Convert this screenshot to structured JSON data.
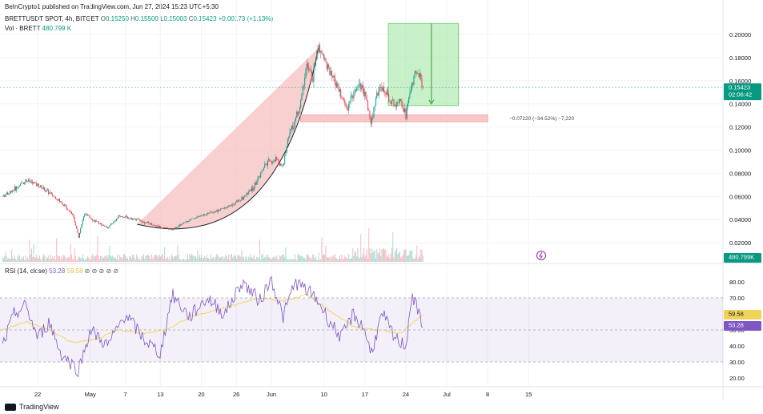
{
  "header": {
    "published": "BeInCrypto1 published on TradingView.com, Jun 27, 2024 15:23 UTC+5:30",
    "symbol": "BRETTUSDT SPOT, 4h, BITGET",
    "o_label": "O",
    "o_value": "0.15250",
    "h_label": "H",
    "h_value": "0.15500",
    "l_label": "L",
    "l_value": "0.15003",
    "c_label": "C",
    "c_value": "0.15423",
    "change": "+0.00173 (+1.13%)",
    "vol_label": "Vol · BRETT",
    "vol_value": "480.799 K",
    "rsi_label": "RSI (14, close)",
    "rsi_value": "53.28",
    "rsi_ma_value": "59.58",
    "eye_icons": "⊘ ⊘ ⊘ ⊘ ⊘"
  },
  "badges": {
    "price": "0.15423",
    "countdown": "02:06:42",
    "volume": "480.799K",
    "rsi": "53.28",
    "rsi_ma": "59.58"
  },
  "measure_label": "−0.07220 (−34.52%) −7,220",
  "footer": {
    "brand": "TradingView"
  },
  "colors": {
    "up": "#089981",
    "down": "#f23645",
    "rsi_line": "#7e57c2",
    "rsi_ma": "#f0d35a",
    "cup_fill": "#f7c0c0",
    "box_green": "#9ce59c",
    "box_red": "#f5b5b5"
  },
  "chart_data": [
    {
      "type": "candlestick",
      "title": "BRETTUSDT SPOT, 4h, BITGET",
      "x_ticks": [
        "22",
        "May",
        "7",
        "13",
        "20",
        "26",
        "Jun",
        "10",
        "17",
        "24",
        "Jul",
        "8",
        "15"
      ],
      "y_ticks": [
        "0.20000",
        "0.18000",
        "0.16000",
        "0.14000",
        "0.12000",
        "0.10000",
        "0.08000",
        "0.06000",
        "0.04000",
        "0.02000"
      ],
      "ylim": [
        0.0,
        0.207
      ],
      "grid": true,
      "close_path": [
        {
          "x": "Apr 16",
          "y": 0.06
        },
        {
          "x": "Apr 18",
          "y": 0.066
        },
        {
          "x": "Apr 20",
          "y": 0.074
        },
        {
          "x": "Apr 22",
          "y": 0.07
        },
        {
          "x": "Apr 24",
          "y": 0.063
        },
        {
          "x": "Apr 26",
          "y": 0.055
        },
        {
          "x": "Apr 28",
          "y": 0.045
        },
        {
          "x": "Apr 29",
          "y": 0.025
        },
        {
          "x": "Apr 30",
          "y": 0.045
        },
        {
          "x": "May 2",
          "y": 0.038
        },
        {
          "x": "May 4",
          "y": 0.033
        },
        {
          "x": "May 6",
          "y": 0.043
        },
        {
          "x": "May 9",
          "y": 0.04
        },
        {
          "x": "May 12",
          "y": 0.035
        },
        {
          "x": "May 15",
          "y": 0.031
        },
        {
          "x": "May 18",
          "y": 0.04
        },
        {
          "x": "May 21",
          "y": 0.045
        },
        {
          "x": "May 24",
          "y": 0.05
        },
        {
          "x": "May 27",
          "y": 0.058
        },
        {
          "x": "May 29",
          "y": 0.068
        },
        {
          "x": "May 31",
          "y": 0.088
        },
        {
          "x": "Jun 2",
          "y": 0.092
        },
        {
          "x": "Jun 3",
          "y": 0.085
        },
        {
          "x": "Jun 4",
          "y": 0.115
        },
        {
          "x": "Jun 5",
          "y": 0.125
        },
        {
          "x": "Jun 6",
          "y": 0.14
        },
        {
          "x": "Jun 7",
          "y": 0.175
        },
        {
          "x": "Jun 8",
          "y": 0.16
        },
        {
          "x": "Jun 9",
          "y": 0.19
        },
        {
          "x": "Jun 10",
          "y": 0.18
        },
        {
          "x": "Jun 11",
          "y": 0.165
        },
        {
          "x": "Jun 12",
          "y": 0.158
        },
        {
          "x": "Jun 13",
          "y": 0.145
        },
        {
          "x": "Jun 14",
          "y": 0.135
        },
        {
          "x": "Jun 15",
          "y": 0.15
        },
        {
          "x": "Jun 16",
          "y": 0.158
        },
        {
          "x": "Jun 17",
          "y": 0.15
        },
        {
          "x": "Jun 18",
          "y": 0.123
        },
        {
          "x": "Jun 19",
          "y": 0.148
        },
        {
          "x": "Jun 20",
          "y": 0.155
        },
        {
          "x": "Jun 21",
          "y": 0.145
        },
        {
          "x": "Jun 22",
          "y": 0.14
        },
        {
          "x": "Jun 23",
          "y": 0.146
        },
        {
          "x": "Jun 24",
          "y": 0.13
        },
        {
          "x": "Jun 25",
          "y": 0.158
        },
        {
          "x": "Jun 26",
          "y": 0.168
        },
        {
          "x": "Jun 27",
          "y": 0.154
        }
      ],
      "current_price": 0.15423,
      "annotations": {
        "projection_box": {
          "x_start": "Jun 21",
          "x_end": "Jul 3",
          "y_top": 0.2095,
          "y_bottom": 0.1385,
          "color": "green"
        },
        "measure_box": {
          "x_start": "Jun 6",
          "x_end": "Jul 8",
          "y_top": 0.1305,
          "y_bottom": 0.1245,
          "color": "red"
        },
        "cup_pattern": {
          "x_start": "May 9",
          "x_end": "Jun 9",
          "bottom_y": 0.029
        }
      }
    },
    {
      "type": "bar",
      "title": "Vol · BRETT",
      "current_value": "480.799 K"
    },
    {
      "type": "line",
      "title": "RSI (14, close)",
      "y_ticks": [
        "80.00",
        "70.00",
        "60.00",
        "50.00",
        "40.00",
        "30.00",
        "20.00"
      ],
      "ylim": [
        17.5,
        87.5
      ],
      "bands": {
        "upper": 70,
        "middle": 50,
        "lower": 30
      },
      "series": [
        {
          "values": [
            {
              "x": "Apr 16",
              "y": 40
            },
            {
              "x": "Apr 18",
              "y": 60
            },
            {
              "x": "Apr 20",
              "y": 65
            },
            {
              "x": "Apr 22",
              "y": 45
            },
            {
              "x": "Apr 24",
              "y": 55
            },
            {
              "x": "Apr 26",
              "y": 35
            },
            {
              "x": "Apr 29",
              "y": 25
            },
            {
              "x": "May 1",
              "y": 50
            },
            {
              "x": "May 4",
              "y": 40
            },
            {
              "x": "May 7",
              "y": 60
            },
            {
              "x": "May 10",
              "y": 45
            },
            {
              "x": "May 13",
              "y": 35
            },
            {
              "x": "May 15",
              "y": 72
            },
            {
              "x": "May 18",
              "y": 58
            },
            {
              "x": "May 21",
              "y": 70
            },
            {
              "x": "May 24",
              "y": 60
            },
            {
              "x": "May 27",
              "y": 80
            },
            {
              "x": "May 30",
              "y": 68
            },
            {
              "x": "Jun 1",
              "y": 82
            },
            {
              "x": "Jun 3",
              "y": 58
            },
            {
              "x": "Jun 5",
              "y": 80
            },
            {
              "x": "Jun 7",
              "y": 75
            },
            {
              "x": "Jun 9",
              "y": 68
            },
            {
              "x": "Jun 11",
              "y": 55
            },
            {
              "x": "Jun 13",
              "y": 45
            },
            {
              "x": "Jun 15",
              "y": 60
            },
            {
              "x": "Jun 17",
              "y": 50
            },
            {
              "x": "Jun 18",
              "y": 35
            },
            {
              "x": "Jun 20",
              "y": 60
            },
            {
              "x": "Jun 22",
              "y": 45
            },
            {
              "x": "Jun 24",
              "y": 40
            },
            {
              "x": "Jun 25",
              "y": 72
            },
            {
              "x": "Jun 26",
              "y": 62
            },
            {
              "x": "Jun 27",
              "y": 53.28
            }
          ]
        },
        {
          "values": [
            {
              "x": "Apr 16",
              "y": 50
            },
            {
              "x": "Apr 20",
              "y": 55
            },
            {
              "x": "Apr 24",
              "y": 50
            },
            {
              "x": "Apr 28",
              "y": 42
            },
            {
              "x": "May 2",
              "y": 44
            },
            {
              "x": "May 6",
              "y": 50
            },
            {
              "x": "May 10",
              "y": 48
            },
            {
              "x": "May 14",
              "y": 50
            },
            {
              "x": "May 18",
              "y": 58
            },
            {
              "x": "May 22",
              "y": 62
            },
            {
              "x": "May 26",
              "y": 66
            },
            {
              "x": "May 30",
              "y": 70
            },
            {
              "x": "Jun 3",
              "y": 68
            },
            {
              "x": "Jun 7",
              "y": 72
            },
            {
              "x": "Jun 11",
              "y": 62
            },
            {
              "x": "Jun 15",
              "y": 52
            },
            {
              "x": "Jun 19",
              "y": 50
            },
            {
              "x": "Jun 23",
              "y": 48
            },
            {
              "x": "Jun 27",
              "y": 59.58
            }
          ]
        }
      ]
    }
  ]
}
